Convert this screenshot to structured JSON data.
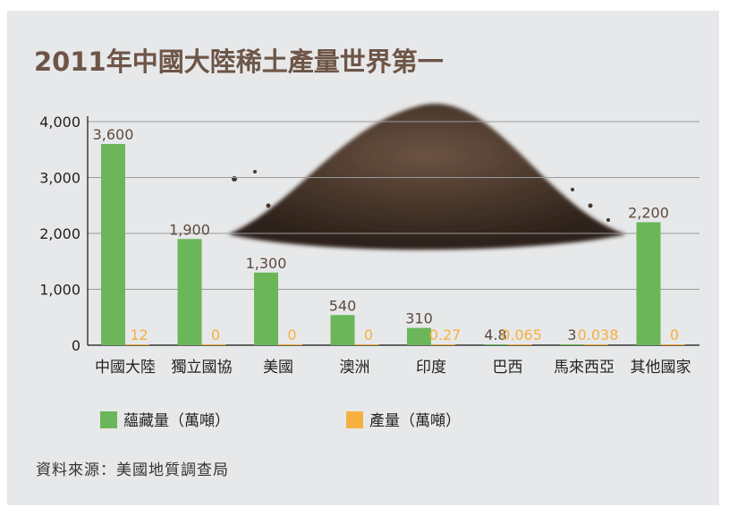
{
  "title": "2011年中國大陸稀土產量世界第一",
  "source": "資料來源：美國地質調查局",
  "colors": {
    "reserves": "#6cb65a",
    "production": "#f6b040",
    "title": "#6d5547",
    "panel": "#e7e8e9"
  },
  "chart_data": {
    "type": "bar",
    "title": "2011年中國大陸稀土產量世界第一",
    "categories": [
      "中國大陸",
      "獨立國協",
      "美國",
      "澳洲",
      "印度",
      "巴西",
      "馬來西亞",
      "其他國家"
    ],
    "series": [
      {
        "name": "蘊藏量（萬噸）",
        "values": [
          3600,
          1900,
          1300,
          540,
          310,
          4.8,
          3,
          2200
        ],
        "labels": [
          "3,600",
          "1,900",
          "1,300",
          "540",
          "310",
          "4.8",
          "3",
          "2,200"
        ]
      },
      {
        "name": "產量（萬噸）",
        "values": [
          12,
          0,
          0,
          0,
          0.27,
          0.065,
          0.038,
          0
        ],
        "labels": [
          "12",
          "0",
          "0",
          "0",
          "0.27",
          "0.065",
          "0.038",
          "0"
        ]
      }
    ],
    "yticks": [
      "0",
      "1,000",
      "2,000",
      "3,000",
      "4,000"
    ],
    "ylim": [
      0,
      4000
    ],
    "grid": true,
    "legend": "bottom-left"
  }
}
